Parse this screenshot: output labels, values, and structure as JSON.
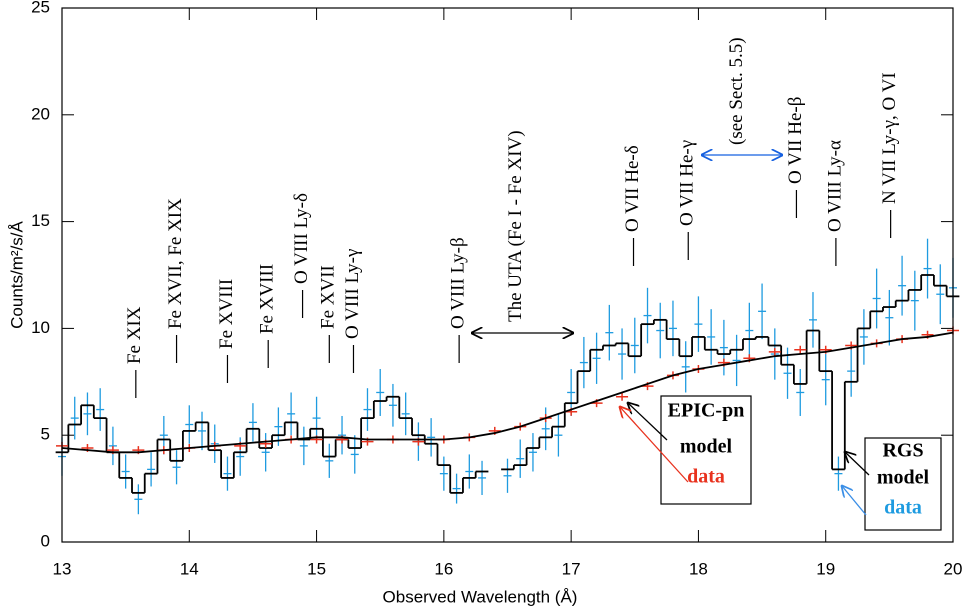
{
  "chart_data": {
    "type": "spectrum",
    "xlabel": "Observed Wavelength (Å)",
    "ylabel": "Counts/m²/s/Å",
    "xlim": [
      13,
      20
    ],
    "ylim": [
      0,
      25
    ],
    "xticks": [
      13,
      14,
      15,
      16,
      17,
      18,
      19,
      20
    ],
    "yticks": [
      0,
      5,
      10,
      15,
      20,
      25
    ],
    "grid": false,
    "series": [
      {
        "kind": "errorpoints",
        "color": "#1e9be0",
        "x": [
          13.0,
          13.1,
          13.2,
          13.3,
          13.4,
          13.5,
          13.6,
          13.7,
          13.8,
          13.9,
          14.0,
          14.1,
          14.2,
          14.3,
          14.4,
          14.5,
          14.6,
          14.7,
          14.8,
          14.9,
          15.0,
          15.1,
          15.2,
          15.3,
          15.4,
          15.5,
          15.6,
          15.7,
          15.8,
          15.9,
          16.0,
          16.1,
          16.2,
          16.3,
          16.4,
          16.5,
          16.6,
          16.7,
          16.8,
          16.9,
          17.0,
          17.1,
          17.2,
          17.3,
          17.4,
          17.5,
          17.6,
          17.7,
          17.8,
          17.9,
          18.0,
          18.1,
          18.2,
          18.3,
          18.4,
          18.5,
          18.6,
          18.7,
          18.8,
          18.9,
          19.0,
          19.1,
          19.2,
          19.3,
          19.4,
          19.5,
          19.6,
          19.7,
          19.8,
          19.9,
          20.0
        ],
        "values": [
          4.0,
          5.8,
          6.0,
          6.2,
          4.5,
          3.3,
          2.0,
          3.4,
          5.0,
          3.5,
          5.5,
          5.2,
          4.6,
          3.2,
          4.0,
          5.6,
          4.2,
          5.4,
          6.0,
          4.5,
          5.8,
          3.8,
          5.0,
          4.1,
          6.2,
          7.0,
          6.4,
          6.0,
          4.7,
          4.9,
          3.2,
          2.5,
          3.3,
          3.0,
          null,
          3.1,
          3.9,
          4.2,
          5.3,
          5.0,
          7.0,
          8.4,
          8.6,
          9.8,
          8.8,
          9.2,
          10.6,
          9.9,
          10.0,
          8.2,
          10.2,
          9.6,
          9.1,
          8.5,
          9.9,
          10.8,
          8.8,
          7.9,
          7.0,
          10.4,
          7.6,
          3.2,
          8.0,
          9.6,
          11.4,
          10.5,
          12.0,
          11.3,
          12.8,
          11.6,
          11.9
        ],
        "errors": [
          0.9,
          1.0,
          1.0,
          1.0,
          0.9,
          0.8,
          0.7,
          0.8,
          0.9,
          0.8,
          0.9,
          0.9,
          0.9,
          0.8,
          0.9,
          0.9,
          0.9,
          0.9,
          1.0,
          0.9,
          1.0,
          0.8,
          0.9,
          0.9,
          1.0,
          1.1,
          1.0,
          1.0,
          0.9,
          0.9,
          0.8,
          0.7,
          0.8,
          0.8,
          null,
          0.8,
          0.9,
          0.9,
          1.0,
          1.0,
          1.1,
          1.2,
          1.2,
          1.3,
          1.2,
          1.3,
          1.3,
          1.3,
          1.3,
          1.2,
          1.3,
          1.3,
          1.3,
          1.2,
          1.3,
          1.3,
          1.2,
          1.2,
          1.1,
          1.3,
          1.2,
          0.8,
          1.2,
          1.3,
          1.4,
          1.3,
          1.4,
          1.4,
          1.4,
          1.4,
          1.4
        ]
      },
      {
        "kind": "step",
        "color": "#000000",
        "x": [
          13.0,
          13.1,
          13.2,
          13.3,
          13.4,
          13.5,
          13.6,
          13.7,
          13.8,
          13.9,
          14.0,
          14.1,
          14.2,
          14.3,
          14.4,
          14.5,
          14.6,
          14.7,
          14.8,
          14.9,
          15.0,
          15.1,
          15.2,
          15.3,
          15.4,
          15.5,
          15.6,
          15.7,
          15.8,
          15.9,
          16.0,
          16.1,
          16.2,
          16.3,
          16.4,
          16.5,
          16.6,
          16.7,
          16.8,
          16.9,
          17.0,
          17.1,
          17.2,
          17.3,
          17.4,
          17.5,
          17.6,
          17.7,
          17.8,
          17.9,
          18.0,
          18.1,
          18.2,
          18.3,
          18.4,
          18.5,
          18.6,
          18.7,
          18.8,
          18.9,
          19.0,
          19.1,
          19.2,
          19.3,
          19.4,
          19.5,
          19.6,
          19.7,
          19.8,
          19.9,
          20.0
        ],
        "values": [
          4.2,
          5.5,
          6.4,
          5.8,
          4.2,
          3.0,
          2.3,
          3.2,
          4.8,
          3.8,
          5.2,
          5.6,
          4.3,
          3.0,
          4.2,
          5.3,
          4.4,
          5.0,
          5.6,
          4.8,
          5.3,
          4.0,
          4.8,
          4.4,
          5.8,
          6.6,
          6.8,
          5.8,
          5.0,
          4.6,
          3.6,
          2.3,
          3.0,
          3.3,
          null,
          3.4,
          3.6,
          4.4,
          4.9,
          5.4,
          6.5,
          8.0,
          9.0,
          9.2,
          9.3,
          8.7,
          10.2,
          10.4,
          9.5,
          8.7,
          9.6,
          9.0,
          8.8,
          9.0,
          9.5,
          9.6,
          9.2,
          8.3,
          7.4,
          9.9,
          8.0,
          3.4,
          7.5,
          10.0,
          10.8,
          11.0,
          11.3,
          11.8,
          12.5,
          12.0,
          11.5
        ]
      },
      {
        "kind": "crosses",
        "color": "#e8321e",
        "x": [
          13.0,
          13.2,
          13.4,
          13.6,
          13.8,
          14.0,
          14.2,
          14.4,
          14.6,
          14.8,
          15.0,
          15.2,
          15.4,
          15.6,
          15.8,
          16.0,
          16.2,
          16.4,
          16.6,
          16.8,
          17.0,
          17.2,
          17.4,
          17.6,
          17.8,
          18.0,
          18.2,
          18.4,
          18.6,
          18.8,
          19.0,
          19.2,
          19.4,
          19.6,
          19.8,
          20.0
        ],
        "values": [
          4.5,
          4.4,
          4.3,
          4.3,
          4.3,
          4.4,
          4.5,
          4.5,
          4.6,
          4.8,
          4.8,
          4.8,
          4.7,
          4.8,
          4.7,
          4.8,
          4.9,
          5.2,
          5.4,
          5.8,
          6.1,
          6.5,
          6.8,
          7.3,
          7.8,
          8.1,
          8.4,
          8.6,
          8.9,
          9.0,
          9.0,
          9.2,
          9.3,
          9.5,
          9.7,
          9.9
        ]
      },
      {
        "kind": "line",
        "color": "#000000",
        "x": [
          13.0,
          13.2,
          13.4,
          13.6,
          13.8,
          14.0,
          14.2,
          14.4,
          14.6,
          14.8,
          15.0,
          15.2,
          15.4,
          15.6,
          15.8,
          16.0,
          16.2,
          16.4,
          16.6,
          16.8,
          17.0,
          17.2,
          17.4,
          17.6,
          17.8,
          18.0,
          18.2,
          18.4,
          18.6,
          18.8,
          19.0,
          19.2,
          19.4,
          19.6,
          19.8,
          20.0
        ],
        "values": [
          4.4,
          4.3,
          4.2,
          4.2,
          4.3,
          4.4,
          4.5,
          4.6,
          4.7,
          4.8,
          4.9,
          4.9,
          4.8,
          4.8,
          4.8,
          4.8,
          4.9,
          5.1,
          5.4,
          5.8,
          6.2,
          6.6,
          7.0,
          7.4,
          7.8,
          8.1,
          8.3,
          8.5,
          8.7,
          8.8,
          8.9,
          9.1,
          9.3,
          9.5,
          9.6,
          9.8
        ]
      }
    ],
    "annotations": [
      {
        "text": "Fe XIX",
        "x": 13.58
      },
      {
        "text": "Fe XVII, Fe XIX",
        "x": 13.9
      },
      {
        "text": "Fe XVIII",
        "x": 14.3
      },
      {
        "text": "Fe XVIII",
        "x": 14.62
      },
      {
        "text": "O VIII Ly-δ",
        "x": 14.89
      },
      {
        "text": "Fe XVII",
        "x": 15.1
      },
      {
        "text": "O VIII Ly-γ",
        "x": 15.29
      },
      {
        "text": "O VIII Ly-β",
        "x": 16.12
      },
      {
        "text": "The UTA (Fe I - Fe XIV)",
        "x": 16.57
      },
      {
        "text": "O VII He-δ",
        "x": 17.49
      },
      {
        "text": "O VII He-γ",
        "x": 17.92
      },
      {
        "text": "(see Sect. 5.5)",
        "x": 18.31,
        "color": "#1560e0"
      },
      {
        "text": "O VII He-β",
        "x": 18.77
      },
      {
        "text": "O VIII Ly-α",
        "x": 19.08
      },
      {
        "text": "N VII Ly-γ, O VI",
        "x": 19.51
      }
    ],
    "legends": [
      {
        "title": "EPIC-pn",
        "items": [
          {
            "text": "model",
            "color": "#000000"
          },
          {
            "text": "data",
            "color": "#e8321e"
          }
        ]
      },
      {
        "title": "RGS",
        "items": [
          {
            "text": "model",
            "color": "#000000"
          },
          {
            "text": "data",
            "color": "#1e9be0"
          }
        ]
      }
    ]
  }
}
